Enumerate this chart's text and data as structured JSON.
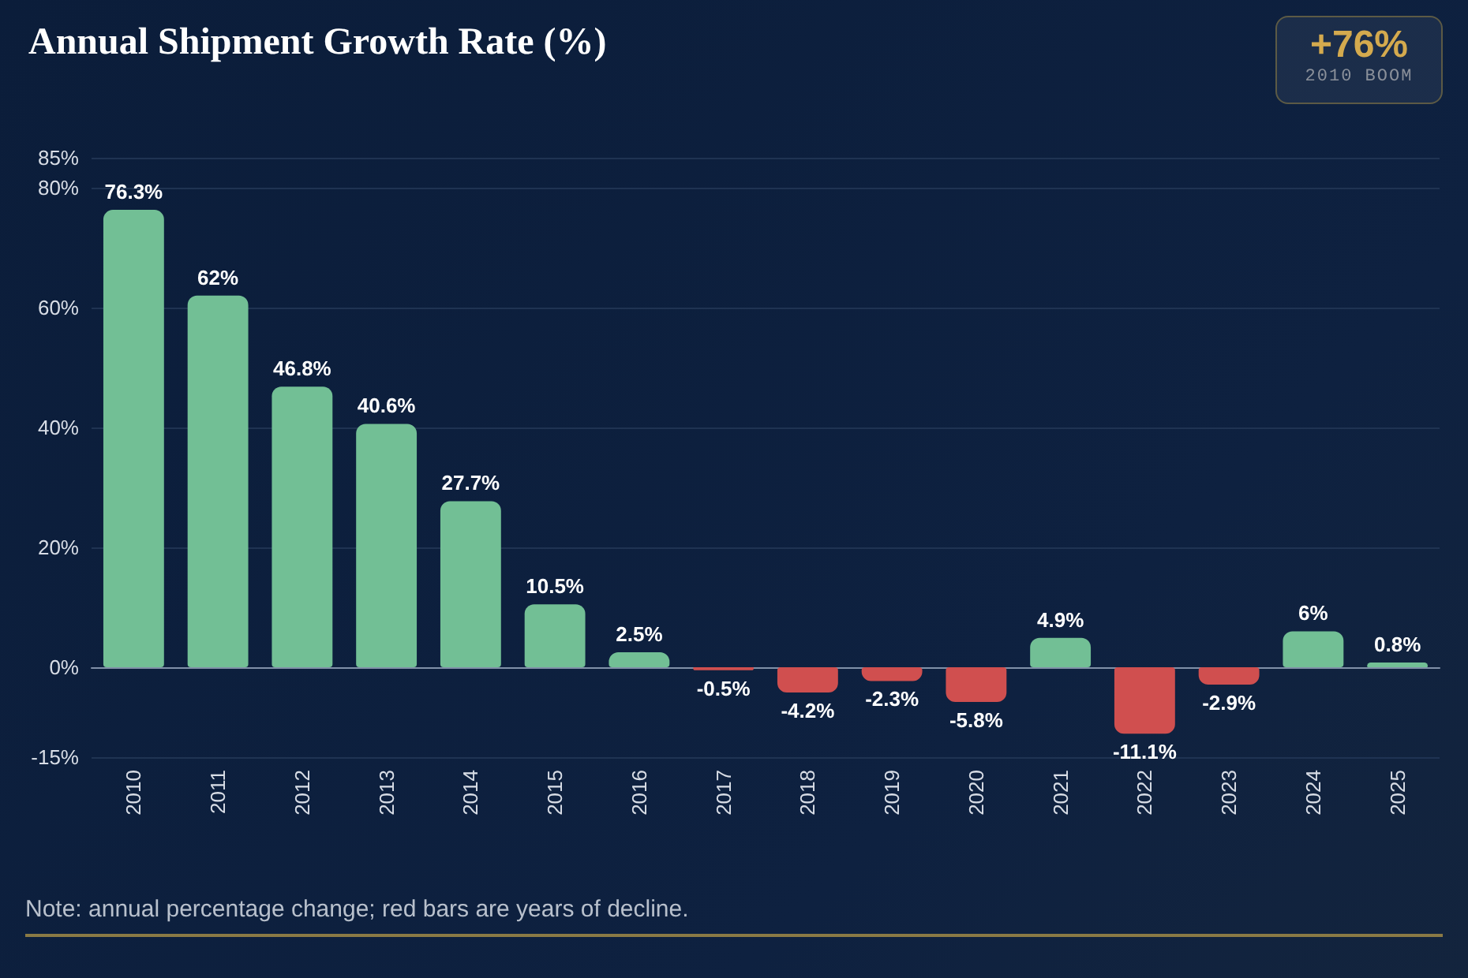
{
  "chart_data": {
    "type": "bar",
    "title": "Annual Shipment Growth Rate (%)",
    "categories": [
      "2010",
      "2011",
      "2012",
      "2013",
      "2014",
      "2015",
      "2016",
      "2017",
      "2018",
      "2019",
      "2020",
      "2021",
      "2022",
      "2023",
      "2024",
      "2025"
    ],
    "values": [
      76.3,
      62,
      46.8,
      40.6,
      27.7,
      10.5,
      2.5,
      -0.5,
      -4.2,
      -2.3,
      -5.8,
      4.9,
      -11.1,
      -2.9,
      6,
      0.8
    ],
    "colors": [
      "#72bf95",
      "#72bf95",
      "#72bf95",
      "#72bf95",
      "#72bf95",
      "#72bf95",
      "#72bf95",
      "#d04f4f",
      "#d04f4f",
      "#d04f4f",
      "#d04f4f",
      "#72bf95",
      "#d04f4f",
      "#d04f4f",
      "#72bf95",
      "#72bf95"
    ],
    "value_labels": [
      "76.3%",
      "62%",
      "46.8%",
      "40.6%",
      "27.7%",
      "10.5%",
      "2.5%",
      "-0.5%",
      "-4.2%",
      "-2.3%",
      "-5.8%",
      "4.9%",
      "-11.1%",
      "-2.9%",
      "6%",
      "0.8%"
    ],
    "ylim": [
      -15,
      85
    ],
    "yticks": [
      {
        "value": -15,
        "label": "-15%"
      },
      {
        "value": 0,
        "label": "0%"
      },
      {
        "value": 20,
        "label": "20%"
      },
      {
        "value": 40,
        "label": "40%"
      },
      {
        "value": 60,
        "label": "60%"
      },
      {
        "value": 80,
        "label": "80%"
      },
      {
        "value": 85,
        "label": "85%"
      }
    ],
    "grid": "y",
    "annotations": [
      "+76%",
      "2010 BOOM",
      "Note: annual percentage change; red bars are years of decline."
    ]
  }
}
